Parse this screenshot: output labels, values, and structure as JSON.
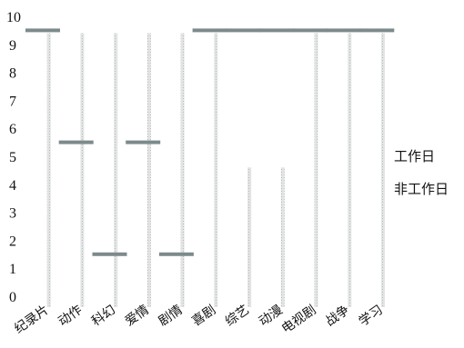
{
  "chart_data": {
    "type": "bar",
    "categories": [
      "纪录片",
      "动作",
      "科幻",
      "爱情",
      "剧情",
      "喜剧",
      "综艺",
      "动漫",
      "电视剧",
      "战争",
      "学习"
    ],
    "series": [
      {
        "name": "工作日",
        "values": [
          9.5,
          5.5,
          1.5,
          5.5,
          1.5,
          9.5,
          9.5,
          9.5,
          9.5,
          9.5,
          9.5
        ],
        "color": "#7d8a8c"
      },
      {
        "name": "非工作日",
        "values": [
          9.4,
          9.4,
          9.4,
          9.4,
          9.4,
          9.4,
          4.6,
          4.6,
          9.4,
          9.4,
          9.4
        ],
        "color": "#d9dcdc"
      }
    ],
    "yticks": [
      0,
      1,
      2,
      3,
      4,
      5,
      6,
      7,
      8,
      9,
      10
    ],
    "ylim": [
      0,
      10
    ],
    "grid": false,
    "legend_position": "right",
    "title": "",
    "xlabel": "",
    "ylabel": ""
  }
}
